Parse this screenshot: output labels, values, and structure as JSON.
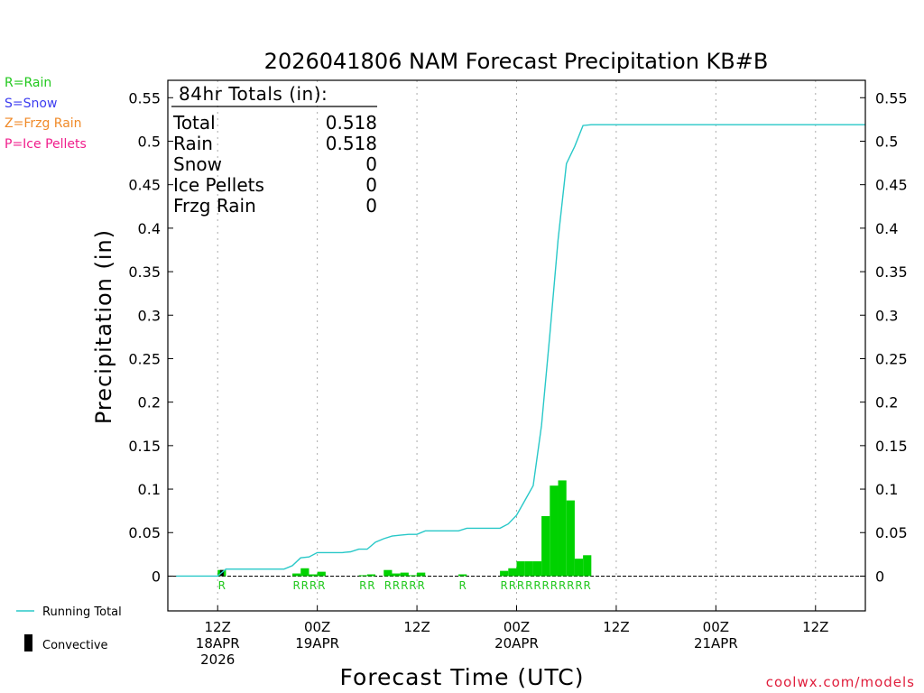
{
  "colors": {
    "rain": "#22c81e",
    "snow": "#3c3cf0",
    "frzg": "#f08a28",
    "ice": "#f01e8c",
    "bar": "#00d200",
    "running_total": "#28c8c8",
    "convective": "#000000",
    "axis": "#000000",
    "grid": "#aaaaaa",
    "credit": "#e01e3c"
  },
  "legend_types": [
    {
      "label": "R=Rain",
      "color_key": "rain"
    },
    {
      "label": "S=Snow",
      "color_key": "snow"
    },
    {
      "label": "Z=Frzg Rain",
      "color_key": "frzg"
    },
    {
      "label": "P=Ice Pellets",
      "color_key": "ice"
    }
  ],
  "legend_bottom": {
    "running_total": "Running Total",
    "convective": "Convective"
  },
  "totals_box": {
    "heading": "84hr Totals (in):",
    "rows": [
      {
        "label": "Total",
        "value": "0.518"
      },
      {
        "label": "Rain",
        "value": "0.518"
      },
      {
        "label": "Snow",
        "value": "0"
      },
      {
        "label": "Ice Pellets",
        "value": "0"
      },
      {
        "label": "Frzg Rain",
        "value": "0"
      }
    ]
  },
  "credit": "coolwx.com/models",
  "chart_data": {
    "type": "bar",
    "title": "2026041806 NAM Forecast Precipitation KB#B",
    "xlabel": "Forecast Time (UTC)",
    "ylabel": "Precipitation (in)",
    "ylim": [
      -0.04,
      0.57
    ],
    "xlim_hours": [
      6,
      90
    ],
    "y_ticks": [
      {
        "v": 0,
        "label": "0"
      },
      {
        "v": 0.05,
        "label": "0.05"
      },
      {
        "v": 0.1,
        "label": "0.1"
      },
      {
        "v": 0.15,
        "label": "0.15"
      },
      {
        "v": 0.2,
        "label": "0.2"
      },
      {
        "v": 0.25,
        "label": "0.25"
      },
      {
        "v": 0.3,
        "label": "0.3"
      },
      {
        "v": 0.35,
        "label": "0.35"
      },
      {
        "v": 0.4,
        "label": "0.4"
      },
      {
        "v": 0.45,
        "label": "0.45"
      },
      {
        "v": 0.5,
        "label": "0.5"
      },
      {
        "v": 0.55,
        "label": "0.55"
      }
    ],
    "x_ticks": [
      {
        "h": 12,
        "lines": [
          "12Z",
          "18APR",
          "2026"
        ]
      },
      {
        "h": 24,
        "lines": [
          "00Z",
          "19APR"
        ]
      },
      {
        "h": 36,
        "lines": [
          "12Z"
        ]
      },
      {
        "h": 48,
        "lines": [
          "00Z",
          "20APR"
        ]
      },
      {
        "h": 60,
        "lines": [
          "12Z"
        ]
      },
      {
        "h": 72,
        "lines": [
          "00Z",
          "21APR"
        ]
      },
      {
        "h": 84,
        "lines": [
          "12Z"
        ]
      }
    ],
    "bar_width_hours": 1,
    "bars": [
      {
        "h": 12.5,
        "v": 0.007,
        "convective": true,
        "label": "R"
      },
      {
        "h": 21.5,
        "v": 0.003,
        "convective": false,
        "label": "R"
      },
      {
        "h": 22.5,
        "v": 0.009,
        "convective": false,
        "label": "R"
      },
      {
        "h": 23.5,
        "v": 0.002,
        "convective": false,
        "label": "R"
      },
      {
        "h": 24.5,
        "v": 0.005,
        "convective": false,
        "label": "R"
      },
      {
        "h": 29.5,
        "v": 0.001,
        "convective": false,
        "label": "R"
      },
      {
        "h": 30.5,
        "v": 0.002,
        "convective": false,
        "label": "R"
      },
      {
        "h": 32.5,
        "v": 0.007,
        "convective": false,
        "label": "R"
      },
      {
        "h": 33.5,
        "v": 0.003,
        "convective": false,
        "label": "R"
      },
      {
        "h": 34.5,
        "v": 0.004,
        "convective": false,
        "label": "R"
      },
      {
        "h": 35.5,
        "v": 0.001,
        "convective": false,
        "label": "R"
      },
      {
        "h": 36.5,
        "v": 0.004,
        "convective": false,
        "label": "R"
      },
      {
        "h": 41.5,
        "v": 0.002,
        "convective": false,
        "label": "R"
      },
      {
        "h": 46.5,
        "v": 0.006,
        "convective": false,
        "label": "R"
      },
      {
        "h": 47.5,
        "v": 0.009,
        "convective": false,
        "label": "R"
      },
      {
        "h": 48.5,
        "v": 0.017,
        "convective": false,
        "label": "R"
      },
      {
        "h": 49.5,
        "v": 0.017,
        "convective": false,
        "label": "R"
      },
      {
        "h": 50.5,
        "v": 0.017,
        "convective": false,
        "label": "R"
      },
      {
        "h": 51.5,
        "v": 0.069,
        "convective": false,
        "label": "R"
      },
      {
        "h": 52.5,
        "v": 0.104,
        "convective": false,
        "label": "R"
      },
      {
        "h": 53.5,
        "v": 0.11,
        "convective": false,
        "label": "R"
      },
      {
        "h": 54.5,
        "v": 0.087,
        "convective": false,
        "label": "R"
      },
      {
        "h": 55.5,
        "v": 0.02,
        "convective": false,
        "label": "R"
      },
      {
        "h": 56.5,
        "v": 0.024,
        "convective": false,
        "label": "R"
      }
    ],
    "running_total": {
      "name": "Running Total",
      "x": [
        7,
        12,
        13,
        20,
        21,
        22,
        23,
        24,
        25,
        27,
        28,
        29,
        30,
        31,
        32,
        33,
        34,
        35,
        36,
        37,
        41,
        42,
        46,
        47,
        48,
        49,
        50,
        51,
        52,
        53,
        54,
        55,
        56,
        57,
        90
      ],
      "y": [
        0,
        0,
        0.008,
        0.008,
        0.012,
        0.021,
        0.022,
        0.027,
        0.027,
        0.027,
        0.028,
        0.031,
        0.031,
        0.039,
        0.043,
        0.046,
        0.047,
        0.048,
        0.048,
        0.052,
        0.052,
        0.055,
        0.055,
        0.06,
        0.07,
        0.087,
        0.104,
        0.173,
        0.277,
        0.387,
        0.474,
        0.494,
        0.518,
        0.519,
        0.519
      ]
    }
  }
}
